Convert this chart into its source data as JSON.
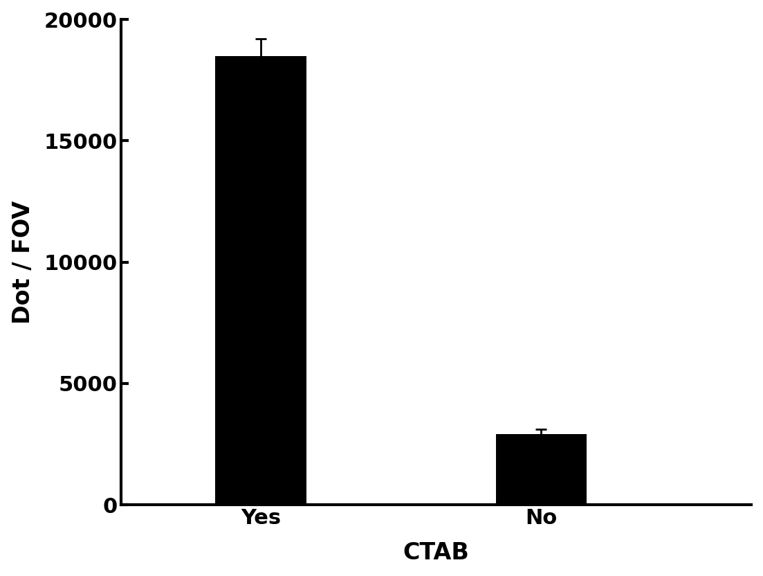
{
  "categories": [
    "Yes",
    "No"
  ],
  "values": [
    18500,
    2900
  ],
  "errors": [
    700,
    200
  ],
  "bar_color": "#000000",
  "bar_width": 0.65,
  "xlabel": "CTAB",
  "ylabel": "Dot / FOV",
  "ylim": [
    0,
    20000
  ],
  "yticks": [
    0,
    5000,
    10000,
    15000,
    20000
  ],
  "label_fontsize": 24,
  "tick_fontsize": 22,
  "background_color": "#ffffff",
  "error_capsize": 6,
  "error_linewidth": 2,
  "bar_edge_color": "#000000",
  "x_positions": [
    1,
    3
  ],
  "xlim": [
    0,
    4.5
  ]
}
